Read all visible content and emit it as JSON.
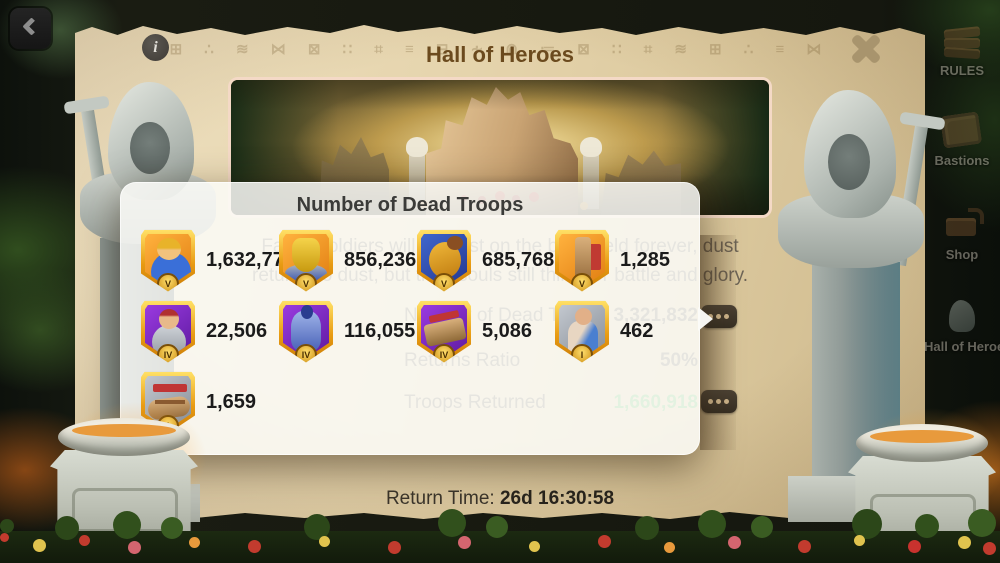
{
  "header": {
    "title": "Hall of Heroes",
    "info_glyph": "i"
  },
  "parchment": {
    "glyphs": "⊞ ∴ ≋ ⋈ ⊠ ∷ ⌗ ≡ ⊟ ∻ ⋒ ≔ ⊠ ∷ ⌗ ≋ ⊞ ∴ ≡ ⋈"
  },
  "description": {
    "line1": "Fallen soldiers will not rest on the battlefield forever, dust",
    "line2": "returns to dust, but their souls still thirst for battle and glory."
  },
  "tooltip": {
    "title": "Number of Dead Troops",
    "troops": [
      {
        "type": "infantry-tier5",
        "tier": "V",
        "value": "1,632,775"
      },
      {
        "type": "siege-tier5",
        "tier": "V",
        "value": "856,236"
      },
      {
        "type": "cavalry-tier5",
        "tier": "V",
        "value": "685,768"
      },
      {
        "type": "siege-tower-tier5",
        "tier": "V",
        "value": "1,285"
      },
      {
        "type": "infantry-tier4",
        "tier": "IV",
        "value": "22,506"
      },
      {
        "type": "cavalry-tier4",
        "tier": "IV",
        "value": "116,055"
      },
      {
        "type": "siege-tier4",
        "tier": "IV",
        "value": "5,086"
      },
      {
        "type": "infantry-tier1",
        "tier": "I",
        "value": "462"
      },
      {
        "type": "ram-tier1",
        "tier": "I",
        "value": "1,659"
      }
    ]
  },
  "stats": {
    "rows": [
      {
        "label": "Number of Dead Troops",
        "value": "3,321,832"
      },
      {
        "label": "Returns Ratio",
        "value": "50%"
      },
      {
        "label": "Troops Returned",
        "value": "1,660,918"
      }
    ]
  },
  "footer": {
    "label": "Return Time:",
    "value": "26d 16:30:58"
  },
  "sidebar": {
    "items": [
      {
        "label": "RULES"
      },
      {
        "label": "Bastions"
      },
      {
        "label": "Shop"
      },
      {
        "label": "Hall of Heroes"
      }
    ]
  },
  "colors": {
    "returned_green": "#58bd5e",
    "gold_frame": "#e89b12",
    "title_brown": "#6b4a1e",
    "parchment": "#e3d2ab"
  }
}
